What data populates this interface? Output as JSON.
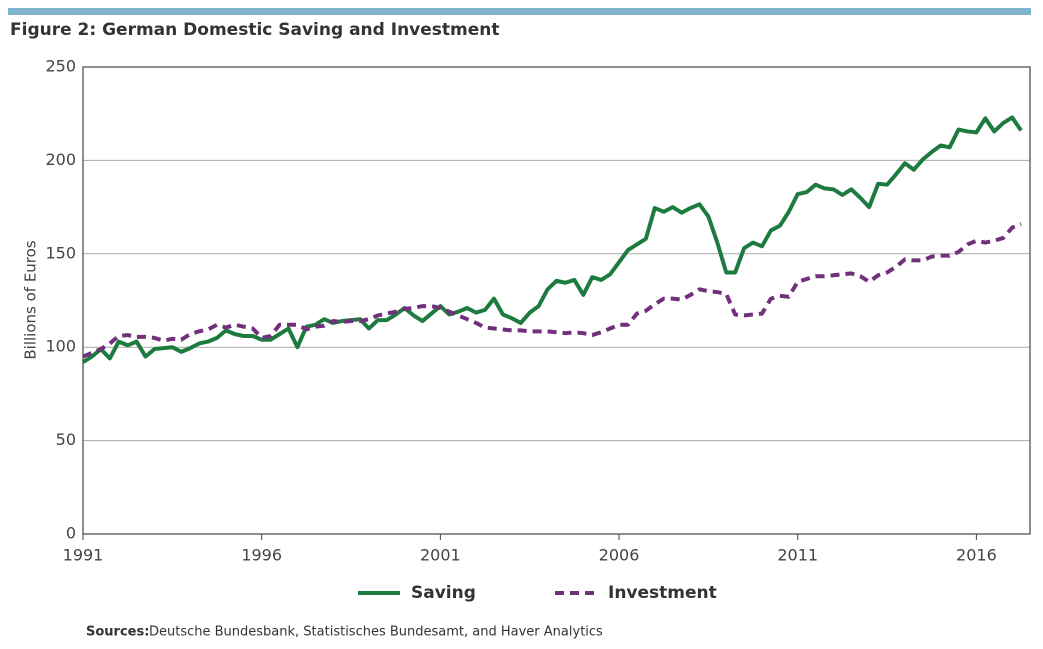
{
  "chart_data": {
    "type": "line",
    "title": "Figure 2: German Domestic Saving and Investment",
    "y_label": "Billions of Euros",
    "source_label": "Sources:",
    "source_text": "Deutsche Bundesbank, Statistisches Bundesamt, and Haver Analytics",
    "xlim": [
      1991,
      2017.5
    ],
    "xticks": [
      1991,
      1996,
      2001,
      2006,
      2011,
      2016
    ],
    "ylim": [
      0,
      250
    ],
    "yticks": [
      0,
      50,
      100,
      150,
      200,
      250
    ],
    "grid": true,
    "legend": "bottom",
    "x": [
      1991,
      1991.25,
      1991.5,
      1991.75,
      1992,
      1992.25,
      1992.5,
      1992.75,
      1993,
      1993.25,
      1993.5,
      1993.75,
      1994,
      1994.25,
      1994.5,
      1994.75,
      1995,
      1995.25,
      1995.5,
      1995.75,
      1996,
      1996.25,
      1996.5,
      1996.75,
      1997,
      1997.25,
      1997.5,
      1997.75,
      1998,
      1998.25,
      1998.5,
      1998.75,
      1999,
      1999.25,
      1999.5,
      1999.75,
      2000,
      2000.25,
      2000.5,
      2000.75,
      2001,
      2001.25,
      2001.5,
      2001.75,
      2002,
      2002.25,
      2002.5,
      2002.75,
      2003,
      2003.25,
      2003.5,
      2003.75,
      2004,
      2004.25,
      2004.5,
      2004.75,
      2005,
      2005.25,
      2005.5,
      2005.75,
      2006,
      2006.25,
      2006.5,
      2006.75,
      2007,
      2007.25,
      2007.5,
      2007.75,
      2008,
      2008.25,
      2008.5,
      2008.75,
      2009,
      2009.25,
      2009.5,
      2009.75,
      2010,
      2010.25,
      2010.5,
      2010.75,
      2011,
      2011.25,
      2011.5,
      2011.75,
      2012,
      2012.25,
      2012.5,
      2012.75,
      2013,
      2013.25,
      2013.5,
      2013.75,
      2014,
      2014.25,
      2014.5,
      2014.75,
      2015,
      2015.25,
      2015.5,
      2015.75,
      2016,
      2016.25,
      2016.5,
      2016.75,
      2017,
      2017.25
    ],
    "series": [
      {
        "name": "Saving",
        "color": "#1e7b3f",
        "dash": false,
        "values": [
          92,
          95,
          99,
          94,
          103,
          101,
          103,
          95,
          99,
          99.5,
          100,
          97.5,
          99.5,
          102,
          103,
          105,
          109,
          107,
          106,
          106,
          104,
          104,
          107,
          110,
          100,
          111,
          112,
          115,
          113,
          114,
          114.5,
          115,
          110,
          114.5,
          114.5,
          117.5,
          121,
          117,
          114,
          118,
          122,
          117.5,
          119,
          121,
          118.5,
          120,
          126,
          117.5,
          115.5,
          113,
          118.5,
          122,
          131,
          135.5,
          134.5,
          136,
          128,
          137.5,
          136,
          139,
          145.5,
          152,
          155,
          158,
          174.5,
          172.5,
          175,
          172,
          174.5,
          176.5,
          170,
          156,
          140,
          140,
          153,
          156,
          154,
          162.5,
          165,
          172.5,
          182,
          183,
          187,
          185,
          184.5,
          181.5,
          184.5,
          180,
          175,
          187.5,
          187,
          192.5,
          198.5,
          195,
          200.5,
          204.5,
          208,
          207,
          216.5,
          215.5,
          215,
          222.5,
          215.5,
          220,
          223,
          216
        ]
      },
      {
        "name": "Investment",
        "color": "#72307c",
        "dash": true,
        "values": [
          95,
          97,
          99,
          102,
          106,
          106.5,
          105.5,
          105.5,
          105,
          103.5,
          104.5,
          104,
          107,
          108.5,
          109.5,
          112,
          110.5,
          112,
          111,
          110,
          105,
          106,
          112,
          112,
          112,
          109.5,
          111,
          111.5,
          114,
          113.5,
          114,
          114,
          115,
          117,
          118,
          119,
          120.5,
          121,
          122,
          122,
          121,
          119,
          117,
          115,
          113,
          110.5,
          110,
          109.5,
          109,
          109,
          108.5,
          108.5,
          108.5,
          108,
          107.5,
          108,
          107.5,
          106.5,
          108,
          110,
          112,
          112,
          118,
          119.5,
          123,
          126,
          126,
          125.5,
          128,
          131,
          130,
          129.5,
          128.5,
          117.5,
          117,
          117.5,
          118,
          126,
          127.5,
          127,
          135,
          136.5,
          138,
          138,
          138.5,
          139,
          139.5,
          138,
          135,
          138.5,
          140,
          143,
          147,
          146.5,
          146.5,
          148.5,
          149,
          149,
          151,
          155,
          157,
          156,
          157,
          158.5,
          164,
          166
        ]
      }
    ]
  }
}
